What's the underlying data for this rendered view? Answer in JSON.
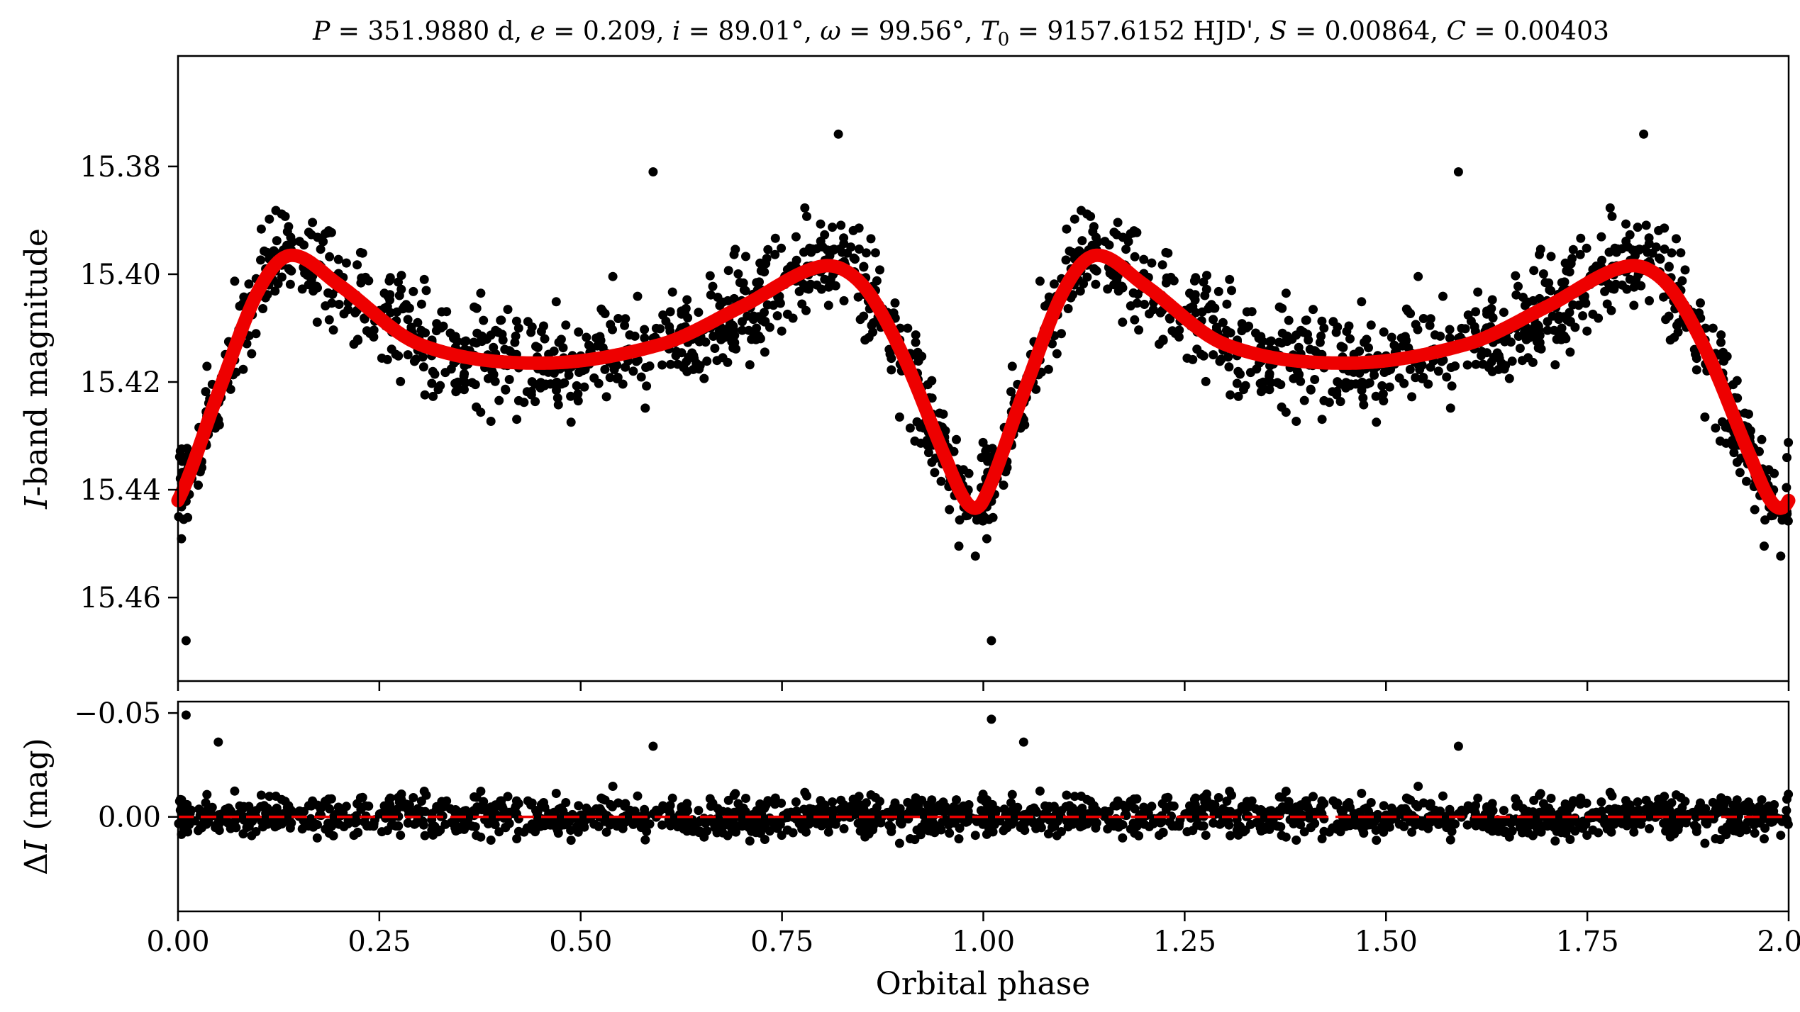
{
  "chart_data": [
    {
      "panel": "top",
      "type": "scatter",
      "title": "P = 351.9880 d, e = 0.209, i = 89.01°, ω = 99.56°, T0 = 9157.6152 HJD', S = 0.00864, C = 0.00403",
      "title_parts": {
        "P_symbol": "P",
        "P_value": " = 351.9880 d, ",
        "e_symbol": "e",
        "e_value": " = 0.209, ",
        "i_symbol": "i",
        "i_value": " = 89.01°, ",
        "omega_symbol": "ω",
        "omega_value": " = 99.56°, ",
        "T0_symbol": "T",
        "T0_subscript": "0",
        "T0_value": " = 9157.6152 HJD', ",
        "S_symbol": "S",
        "S_value": " = 0.00864, ",
        "C_symbol": "C",
        "C_value": " = 0.00403"
      },
      "ylabel_italic": "I",
      "ylabel_rest": "-band magnitude",
      "xlabel": "",
      "xlim": [
        0.0,
        2.0
      ],
      "ylim": [
        15.4755,
        15.3595
      ],
      "y_inverted": true,
      "yticks": [
        15.38,
        15.4,
        15.42,
        15.44,
        15.46
      ],
      "ytick_labels": [
        "15.38",
        "15.40",
        "15.42",
        "15.44",
        "15.46"
      ],
      "xticks": [
        0.0,
        0.25,
        0.5,
        0.75,
        1.0,
        1.25,
        1.5,
        1.75,
        2.0
      ],
      "series": [
        {
          "name": "Observed I-band magnitudes",
          "style": "black filled circles",
          "color": "#000000",
          "phase_coverage": [
            0.0,
            2.0
          ],
          "scatter_sigma_mag": 0.008,
          "approx_point_count": 1800,
          "notable_points": [
            {
              "x": 0.01,
              "y": 15.468
            },
            {
              "x": 0.59,
              "y": 15.381
            },
            {
              "x": 0.82,
              "y": 15.374
            },
            {
              "x": 1.01,
              "y": 15.468
            },
            {
              "x": 1.59,
              "y": 15.381
            },
            {
              "x": 1.82,
              "y": 15.374
            }
          ]
        },
        {
          "name": "Model light curve",
          "style": "thick red line",
          "color": "#ee0000",
          "x": [
            0.0,
            0.05,
            0.1,
            0.14,
            0.2,
            0.3,
            0.45,
            0.6,
            0.7,
            0.8,
            0.85,
            0.9,
            0.95,
            0.98,
            1.02,
            1.05,
            1.1,
            1.14,
            1.2,
            1.3,
            1.45,
            1.6,
            1.7,
            1.8,
            1.85,
            1.9,
            1.95,
            1.98,
            2.0
          ],
          "y": [
            15.442,
            15.422,
            15.403,
            15.3965,
            15.402,
            15.413,
            15.4165,
            15.413,
            15.406,
            15.3985,
            15.402,
            15.415,
            15.433,
            15.4425,
            15.434,
            15.418,
            15.401,
            15.3965,
            15.402,
            15.413,
            15.4165,
            15.413,
            15.406,
            15.3985,
            15.402,
            15.415,
            15.433,
            15.4425,
            15.442
          ]
        }
      ]
    },
    {
      "panel": "bottom",
      "type": "scatter",
      "title": "",
      "ylabel_symbol": "Δ",
      "ylabel_italic": "I",
      "ylabel_rest": " (mag)",
      "xlabel": "Orbital phase",
      "xlim": [
        0.0,
        2.0
      ],
      "ylim": [
        0.0455,
        -0.0555
      ],
      "y_inverted": true,
      "yticks": [
        -0.05,
        0.0
      ],
      "ytick_labels": [
        "−0.05",
        "0.00"
      ],
      "xticks": [
        0.0,
        0.25,
        0.5,
        0.75,
        1.0,
        1.25,
        1.5,
        1.75,
        2.0
      ],
      "xtick_labels": [
        "0.00",
        "0.25",
        "0.50",
        "0.75",
        "1.00",
        "1.25",
        "1.50",
        "1.75",
        "2.00"
      ],
      "series": [
        {
          "name": "Residuals",
          "style": "black filled circles",
          "color": "#000000",
          "scatter_sigma_mag": 0.008,
          "approx_point_count": 1800,
          "notable_points": [
            {
              "x": 0.01,
              "y": -0.049
            },
            {
              "x": 0.05,
              "y": -0.036
            },
            {
              "x": 0.59,
              "y": -0.034
            },
            {
              "x": 1.01,
              "y": -0.047
            },
            {
              "x": 1.05,
              "y": -0.036
            },
            {
              "x": 1.59,
              "y": -0.034
            }
          ]
        },
        {
          "name": "Zero line",
          "style": "red dashed line",
          "color": "#ee0000",
          "y": 0.0
        }
      ]
    }
  ]
}
